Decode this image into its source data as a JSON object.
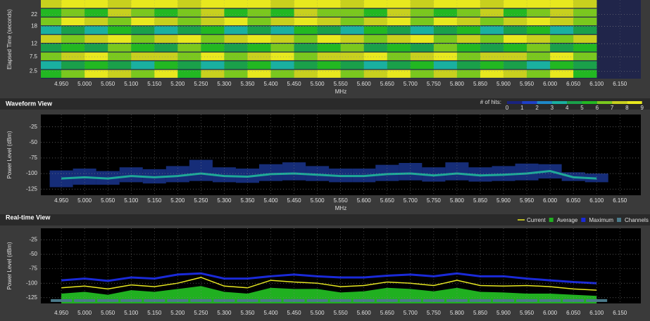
{
  "chart_data": [
    {
      "type": "heatmap",
      "y_label": "Elapsed Time (seconds)",
      "x_label": "MHz",
      "xlim": [
        4.906,
        6.195
      ],
      "ylim": [
        0,
        27
      ],
      "xticks": [
        {
          "value": 4.95,
          "label": "4.950"
        },
        {
          "value": 5.0,
          "label": "5.000"
        },
        {
          "value": 5.05,
          "label": "5.050"
        },
        {
          "value": 5.1,
          "label": "5.100"
        },
        {
          "value": 5.15,
          "label": "5.150"
        },
        {
          "value": 5.2,
          "label": "5.200"
        },
        {
          "value": 5.25,
          "label": "5.250"
        },
        {
          "value": 5.3,
          "label": "5.300"
        },
        {
          "value": 5.35,
          "label": "5.350"
        },
        {
          "value": 5.4,
          "label": "5.400"
        },
        {
          "value": 5.45,
          "label": "5.450"
        },
        {
          "value": 5.5,
          "label": "5.500"
        },
        {
          "value": 5.55,
          "label": "5.550"
        },
        {
          "value": 5.6,
          "label": "5.600"
        },
        {
          "value": 5.65,
          "label": "5.650"
        },
        {
          "value": 5.7,
          "label": "5.700"
        },
        {
          "value": 5.75,
          "label": "5.750"
        },
        {
          "value": 5.8,
          "label": "5.800"
        },
        {
          "value": 5.85,
          "label": "5.850"
        },
        {
          "value": 5.9,
          "label": "5.900"
        },
        {
          "value": 5.95,
          "label": "5.950"
        },
        {
          "value": 6.0,
          "label": "6.000"
        },
        {
          "value": 6.05,
          "label": "6.050"
        },
        {
          "value": 6.1,
          "label": "6.100"
        },
        {
          "value": 6.15,
          "label": "6.150"
        }
      ],
      "yticks": [
        2.5,
        7.5,
        12,
        18,
        22
      ],
      "x_bins": [
        4.9,
        4.95,
        5.0,
        5.05,
        5.1,
        5.15,
        5.2,
        5.25,
        5.3,
        5.35,
        5.4,
        5.45,
        5.5,
        5.55,
        5.6,
        5.65,
        5.7,
        5.75,
        5.8,
        5.85,
        5.9,
        5.95,
        6.0,
        6.05,
        6.1
      ],
      "y_bins": [
        0,
        3,
        6,
        9,
        12,
        15,
        18,
        21,
        24,
        27
      ],
      "z": [
        [
          5,
          6,
          8,
          7,
          6,
          8,
          5,
          7,
          6,
          8,
          6,
          7,
          8,
          6,
          7,
          8,
          6,
          7,
          6,
          8,
          7,
          6,
          8,
          5
        ],
        [
          3,
          4,
          5,
          4,
          3,
          5,
          4,
          3,
          4,
          5,
          3,
          4,
          5,
          4,
          3,
          4,
          5,
          3,
          4,
          5,
          4,
          3,
          5,
          4
        ],
        [
          6,
          7,
          8,
          6,
          7,
          7,
          6,
          8,
          6,
          7,
          8,
          6,
          7,
          7,
          8,
          6,
          7,
          8,
          6,
          7,
          7,
          6,
          8,
          6
        ],
        [
          4,
          5,
          4,
          6,
          5,
          4,
          6,
          5,
          4,
          5,
          6,
          4,
          5,
          6,
          4,
          5,
          4,
          6,
          5,
          4,
          5,
          6,
          4,
          5
        ],
        [
          7,
          6,
          7,
          8,
          6,
          7,
          8,
          6,
          7,
          8,
          7,
          6,
          8,
          7,
          6,
          7,
          8,
          6,
          7,
          6,
          8,
          7,
          6,
          7
        ],
        [
          3,
          4,
          3,
          5,
          4,
          3,
          4,
          5,
          3,
          4,
          3,
          5,
          4,
          3,
          5,
          4,
          3,
          4,
          5,
          3,
          4,
          5,
          3,
          4
        ],
        [
          6,
          8,
          7,
          6,
          8,
          7,
          6,
          7,
          8,
          6,
          7,
          8,
          7,
          6,
          7,
          8,
          6,
          8,
          7,
          6,
          7,
          8,
          7,
          6
        ],
        [
          5,
          6,
          5,
          7,
          6,
          5,
          6,
          7,
          5,
          6,
          5,
          7,
          6,
          6,
          5,
          7,
          6,
          5,
          6,
          7,
          5,
          6,
          7,
          6
        ],
        [
          7,
          8,
          8,
          7,
          8,
          8,
          7,
          8,
          8,
          8,
          7,
          8,
          8,
          7,
          8,
          8,
          7,
          8,
          8,
          7,
          8,
          8,
          8,
          7
        ]
      ]
    },
    {
      "type": "band",
      "title": "Waveform View",
      "y_label": "Power Level (dBm)",
      "x_label": "MHz",
      "xlim": [
        4.906,
        6.195
      ],
      "ylim": [
        -135,
        -5
      ],
      "xticks": [
        {
          "value": 4.95,
          "label": "4.950"
        },
        {
          "value": 5.0,
          "label": "5.000"
        },
        {
          "value": 5.05,
          "label": "5.050"
        },
        {
          "value": 5.1,
          "label": "5.100"
        },
        {
          "value": 5.15,
          "label": "5.150"
        },
        {
          "value": 5.2,
          "label": "5.200"
        },
        {
          "value": 5.25,
          "label": "5.250"
        },
        {
          "value": 5.3,
          "label": "5.300"
        },
        {
          "value": 5.35,
          "label": "5.350"
        },
        {
          "value": 5.4,
          "label": "5.400"
        },
        {
          "value": 5.45,
          "label": "5.450"
        },
        {
          "value": 5.5,
          "label": "5.500"
        },
        {
          "value": 5.55,
          "label": "5.550"
        },
        {
          "value": 5.6,
          "label": "5.600"
        },
        {
          "value": 5.65,
          "label": "5.650"
        },
        {
          "value": 5.7,
          "label": "5.700"
        },
        {
          "value": 5.75,
          "label": "5.750"
        },
        {
          "value": 5.8,
          "label": "5.800"
        },
        {
          "value": 5.85,
          "label": "5.850"
        },
        {
          "value": 5.9,
          "label": "5.900"
        },
        {
          "value": 5.95,
          "label": "5.950"
        },
        {
          "value": 6.0,
          "label": "6.000"
        },
        {
          "value": 6.05,
          "label": "6.050"
        },
        {
          "value": 6.1,
          "label": "6.100"
        },
        {
          "value": 6.15,
          "label": "6.150"
        }
      ],
      "yticks": [
        -125,
        -100,
        -75,
        -50,
        -25
      ],
      "x": [
        4.95,
        5.0,
        5.05,
        5.1,
        5.15,
        5.2,
        5.25,
        5.3,
        5.35,
        5.4,
        5.45,
        5.5,
        5.55,
        5.6,
        5.65,
        5.7,
        5.75,
        5.8,
        5.85,
        5.9,
        5.95,
        6.0,
        6.05,
        6.1
      ],
      "values": [
        -108,
        -106,
        -108,
        -104,
        -106,
        -104,
        -100,
        -104,
        -105,
        -101,
        -100,
        -102,
        -104,
        -104,
        -101,
        -100,
        -103,
        -100,
        -103,
        -102,
        -100,
        -96,
        -106,
        -108
      ],
      "low": [
        -122,
        -118,
        -118,
        -114,
        -116,
        -114,
        -112,
        -114,
        -115,
        -112,
        -111,
        -112,
        -114,
        -114,
        -112,
        -111,
        -113,
        -111,
        -113,
        -112,
        -111,
        -108,
        -112,
        -114
      ],
      "high": [
        -95,
        -92,
        -96,
        -90,
        -93,
        -88,
        -78,
        -90,
        -92,
        -85,
        -82,
        -88,
        -92,
        -92,
        -86,
        -83,
        -90,
        -82,
        -90,
        -88,
        -84,
        -85,
        -98,
        -100
      ],
      "color": "#20c8a0",
      "band_color": "#1e3ca0",
      "legend_scale": {
        "title": "# of hits:",
        "ticks": [
          0,
          1,
          2,
          3,
          4,
          5,
          6,
          7,
          8,
          9
        ],
        "colors": [
          "#1a237e",
          "#1e40c8",
          "#1e88c8",
          "#1ab0a0",
          "#1aa04a",
          "#22b822",
          "#7ac81e",
          "#c8d01e",
          "#e8e81e"
        ]
      }
    },
    {
      "type": "line",
      "title": "Real-time View",
      "y_label": "Power Level (dBm)",
      "xlim": [
        4.906,
        6.195
      ],
      "ylim": [
        -135,
        -5
      ],
      "xticks": [
        {
          "value": 4.95,
          "label": "4.950"
        },
        {
          "value": 5.0,
          "label": "5.000"
        },
        {
          "value": 5.05,
          "label": "5.050"
        },
        {
          "value": 5.1,
          "label": "5.100"
        },
        {
          "value": 5.15,
          "label": "5.150"
        },
        {
          "value": 5.2,
          "label": "5.200"
        },
        {
          "value": 5.25,
          "label": "5.250"
        },
        {
          "value": 5.3,
          "label": "5.300"
        },
        {
          "value": 5.35,
          "label": "5.350"
        },
        {
          "value": 5.4,
          "label": "5.400"
        },
        {
          "value": 5.45,
          "label": "5.450"
        },
        {
          "value": 5.5,
          "label": "5.500"
        },
        {
          "value": 5.55,
          "label": "5.550"
        },
        {
          "value": 5.6,
          "label": "5.600"
        },
        {
          "value": 5.65,
          "label": "5.650"
        },
        {
          "value": 5.7,
          "label": "5.700"
        },
        {
          "value": 5.75,
          "label": "5.750"
        },
        {
          "value": 5.8,
          "label": "5.800"
        },
        {
          "value": 5.85,
          "label": "5.850"
        },
        {
          "value": 5.9,
          "label": "5.900"
        },
        {
          "value": 5.95,
          "label": "5.950"
        },
        {
          "value": 6.0,
          "label": "6.000"
        },
        {
          "value": 6.05,
          "label": "6.050"
        },
        {
          "value": 6.1,
          "label": "6.100"
        },
        {
          "value": 6.15,
          "label": "6.150"
        }
      ],
      "yticks": [
        -125,
        -100,
        -75,
        -50,
        -25
      ],
      "x": [
        4.95,
        5.0,
        5.05,
        5.1,
        5.15,
        5.2,
        5.25,
        5.3,
        5.35,
        5.4,
        5.45,
        5.5,
        5.55,
        5.6,
        5.65,
        5.7,
        5.75,
        5.8,
        5.85,
        5.9,
        5.95,
        6.0,
        6.05,
        6.1
      ],
      "series": [
        {
          "name": "Current",
          "color": "#e8e820",
          "values": [
            -108,
            -105,
            -110,
            -103,
            -106,
            -100,
            -90,
            -105,
            -108,
            -95,
            -98,
            -100,
            -106,
            -104,
            -98,
            -100,
            -104,
            -95,
            -104,
            -105,
            -104,
            -106,
            -110,
            -112
          ]
        },
        {
          "name": "Average",
          "color": "#20b020",
          "values": [
            -118,
            -115,
            -120,
            -112,
            -115,
            -110,
            -105,
            -115,
            -118,
            -108,
            -110,
            -110,
            -116,
            -114,
            -108,
            -110,
            -114,
            -108,
            -115,
            -116,
            -118,
            -118,
            -120,
            -122
          ]
        },
        {
          "name": "Maximum",
          "color": "#1a2ad8",
          "values": [
            -95,
            -92,
            -96,
            -90,
            -92,
            -85,
            -83,
            -92,
            -92,
            -88,
            -85,
            -88,
            -90,
            -90,
            -87,
            -85,
            -88,
            -83,
            -88,
            -88,
            -92,
            -95,
            -98,
            -100
          ]
        },
        {
          "name": "Channels",
          "color": "#4a7a8a",
          "values": [
            -130,
            -130,
            -130,
            -130,
            -130,
            -130,
            -130,
            -130,
            -130,
            -130,
            -130,
            -130,
            -130,
            -130,
            -130,
            -130,
            -130,
            -130,
            -130,
            -130,
            -130,
            -130,
            -130,
            -130
          ]
        }
      ]
    }
  ]
}
